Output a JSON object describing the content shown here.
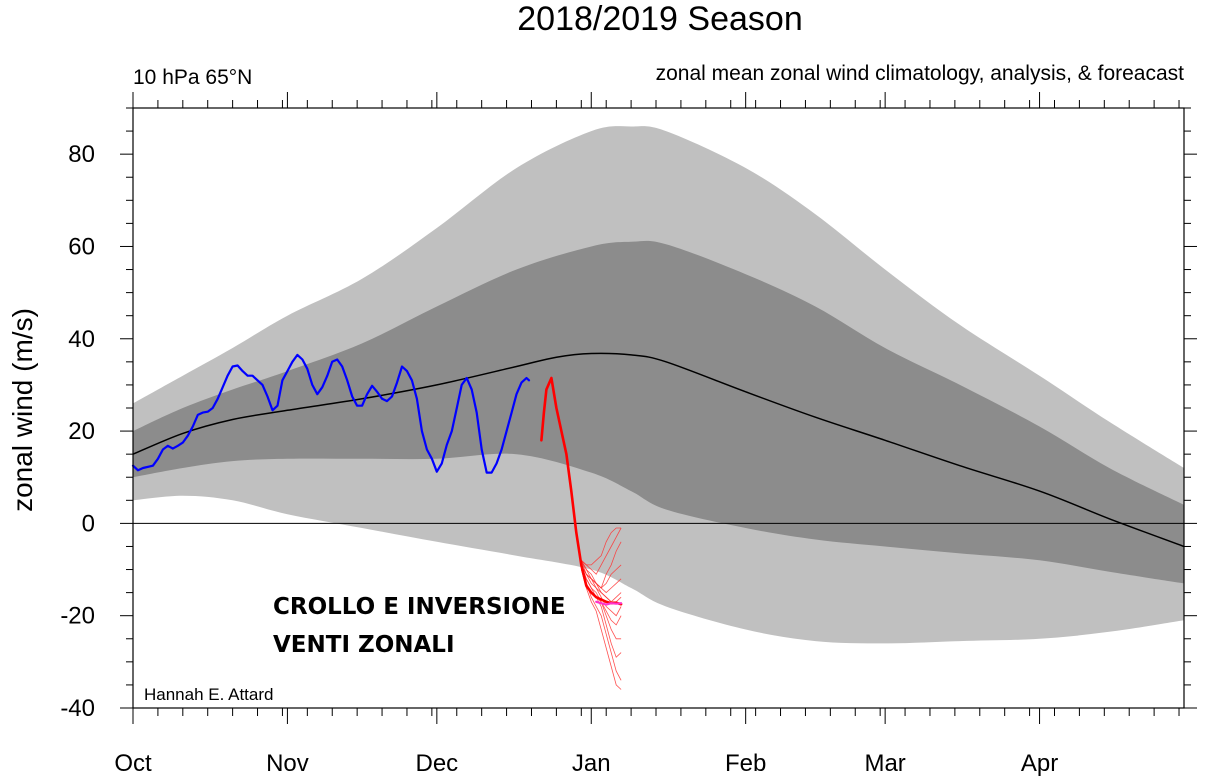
{
  "chart_data": {
    "type": "area",
    "title": "2018/2019 Season",
    "subtitle_left": "10 hPa 65°N",
    "subtitle_right": "zonal mean zonal wind climatology, analysis, & foreacast",
    "xlabel": "",
    "ylabel": "zonal wind (m/s)",
    "ylim": [
      -40,
      90
    ],
    "xlim": [
      0,
      211
    ],
    "x_unit": "days since 1 Oct 2018",
    "month_ticks": [
      {
        "label": "Oct",
        "day": 0
      },
      {
        "label": "Nov",
        "day": 31
      },
      {
        "label": "Dec",
        "day": 61
      },
      {
        "label": "Jan",
        "day": 92
      },
      {
        "label": "Feb",
        "day": 123
      },
      {
        "label": "Mar",
        "day": 151
      },
      {
        "label": "Apr",
        "day": 182
      }
    ],
    "y_ticks": [
      -40,
      -20,
      0,
      20,
      40,
      60,
      80
    ],
    "outer_band": {
      "name": "climatological extremes",
      "color": "#c0c0c0",
      "x": [
        0,
        10,
        20,
        31,
        46,
        61,
        77,
        92,
        100,
        107,
        123,
        137,
        151,
        166,
        182,
        196,
        211
      ],
      "upper": [
        26,
        32,
        38,
        45,
        53,
        64,
        77,
        85,
        86,
        85,
        77,
        67,
        55,
        43,
        32,
        22,
        12
      ],
      "lower": [
        5,
        6,
        5,
        2,
        -1,
        -4,
        -7,
        -10,
        -14,
        -18,
        -23,
        -25.5,
        -26,
        -25.5,
        -25,
        -23.5,
        -21
      ]
    },
    "inner_band": {
      "name": "interquartile range",
      "color": "#8c8c8c",
      "x": [
        0,
        10,
        20,
        31,
        46,
        61,
        77,
        92,
        100,
        107,
        123,
        137,
        151,
        166,
        182,
        196,
        211
      ],
      "upper": [
        20,
        25,
        29,
        33,
        39,
        47,
        55,
        60,
        61,
        60.5,
        54,
        47,
        38,
        30,
        21,
        12,
        4
      ],
      "lower": [
        10,
        12,
        13.5,
        14,
        14,
        14,
        15,
        11,
        7,
        3,
        -1,
        -3.5,
        -5,
        -6.5,
        -8,
        -10.5,
        -13
      ]
    },
    "series": [
      {
        "name": "climatology mean",
        "color": "#000000",
        "x": [
          0,
          10,
          20,
          31,
          46,
          61,
          77,
          85,
          92,
          100,
          107,
          123,
          137,
          151,
          166,
          182,
          196,
          211
        ],
        "values": [
          15,
          19.5,
          22.5,
          24.5,
          27,
          30,
          34,
          36,
          36.8,
          36.5,
          35,
          28.5,
          23,
          18,
          12.5,
          7,
          1,
          -5
        ]
      },
      {
        "name": "analysis",
        "color": "#0000ff",
        "x": [
          0,
          1,
          2,
          4,
          5,
          6,
          7,
          8,
          9,
          10,
          11,
          12,
          13,
          14,
          15,
          16,
          17,
          18,
          19,
          20,
          21,
          22,
          23,
          24,
          25,
          26,
          27,
          28,
          29,
          30,
          31,
          32,
          33,
          34,
          35,
          36,
          37,
          38,
          39,
          40,
          41,
          42,
          43,
          44,
          45,
          46,
          47,
          48,
          49,
          50,
          51,
          52,
          53,
          54,
          55,
          56,
          57,
          58,
          59,
          60,
          61,
          62,
          63,
          64,
          65,
          66,
          67,
          68,
          69,
          70,
          71,
          72,
          73,
          74,
          75,
          76,
          77,
          78,
          79,
          79.5
        ],
        "values": [
          12.5,
          11.5,
          12,
          12.5,
          14,
          16,
          16.8,
          16.2,
          16.8,
          17.5,
          19,
          21,
          23.5,
          24,
          24.2,
          25,
          27,
          29.5,
          32,
          34,
          34.2,
          33,
          32,
          32,
          31,
          30,
          27.5,
          24.5,
          25.5,
          31,
          33,
          35,
          36.5,
          35.5,
          33.5,
          30,
          28,
          29.5,
          32,
          35,
          35.5,
          34,
          31,
          27.5,
          25.5,
          25.5,
          28,
          29.8,
          28.5,
          27,
          26.5,
          27.5,
          30.5,
          34,
          33,
          31,
          27,
          20,
          16,
          14,
          11.2,
          13,
          17,
          20,
          25,
          30,
          31.5,
          29,
          24,
          16,
          11,
          11,
          13,
          16,
          20,
          24,
          28,
          30.5,
          31.5,
          31
        ]
      },
      {
        "name": "forecast",
        "color": "#ff0000",
        "x": [
          82,
          82.5,
          83,
          84,
          85,
          86,
          87,
          88,
          89,
          90,
          91,
          92,
          93,
          94,
          95,
          96,
          97,
          98
        ],
        "values": [
          18,
          24,
          29,
          31.5,
          25,
          20,
          15,
          7,
          -2,
          -9,
          -13.5,
          -15,
          -16,
          -16.5,
          -17,
          -17.3,
          -17.2,
          -17.5
        ]
      },
      {
        "name": "ensemble mean",
        "color": "#ff33cc",
        "x": [
          93,
          94,
          95,
          96,
          97,
          98
        ],
        "values": [
          -17,
          -17.3,
          -17.6,
          -17.3,
          -17.4,
          -17.3
        ]
      }
    ],
    "ensemble_members": {
      "color": "#ff3333",
      "x": [
        90,
        91,
        92,
        93,
        94,
        95,
        96,
        97,
        98
      ],
      "members": [
        [
          -10,
          -14,
          -17,
          -19,
          -23,
          -27,
          -31,
          -35,
          -36
        ],
        [
          -9,
          -13,
          -16,
          -18,
          -20,
          -24,
          -28,
          -32,
          -34
        ],
        [
          -10,
          -13,
          -15,
          -16,
          -18,
          -22,
          -26,
          -29,
          -28
        ],
        [
          -9,
          -12,
          -14,
          -16,
          -17,
          -20,
          -23,
          -25,
          -25
        ],
        [
          -9,
          -12,
          -14,
          -15,
          -17,
          -19,
          -21,
          -22,
          -20
        ],
        [
          -9,
          -11,
          -13,
          -14,
          -16,
          -18,
          -19,
          -20,
          -18
        ],
        [
          -9,
          -11,
          -12,
          -13,
          -15,
          -16,
          -17,
          -17,
          -16
        ],
        [
          -9,
          -11,
          -12,
          -14,
          -15,
          -16,
          -17,
          -16,
          -15
        ],
        [
          -8,
          -11,
          -12,
          -13,
          -14,
          -15,
          -14,
          -13,
          -12
        ],
        [
          -8,
          -10,
          -12,
          -13,
          -14,
          -13,
          -11,
          -10,
          -9
        ],
        [
          -8,
          -10,
          -11,
          -13,
          -14,
          -11,
          -9,
          -6,
          -4
        ],
        [
          -8,
          -9,
          -10,
          -11,
          -9,
          -7,
          -5,
          -3,
          -1
        ],
        [
          -8,
          -9,
          -9,
          -8,
          -7,
          -4,
          -2,
          -1,
          -1
        ]
      ]
    },
    "annotations": [
      "CROLLO E INVERSIONE",
      "VENTI ZONALI"
    ],
    "credit": "Hannah E. Attard"
  }
}
